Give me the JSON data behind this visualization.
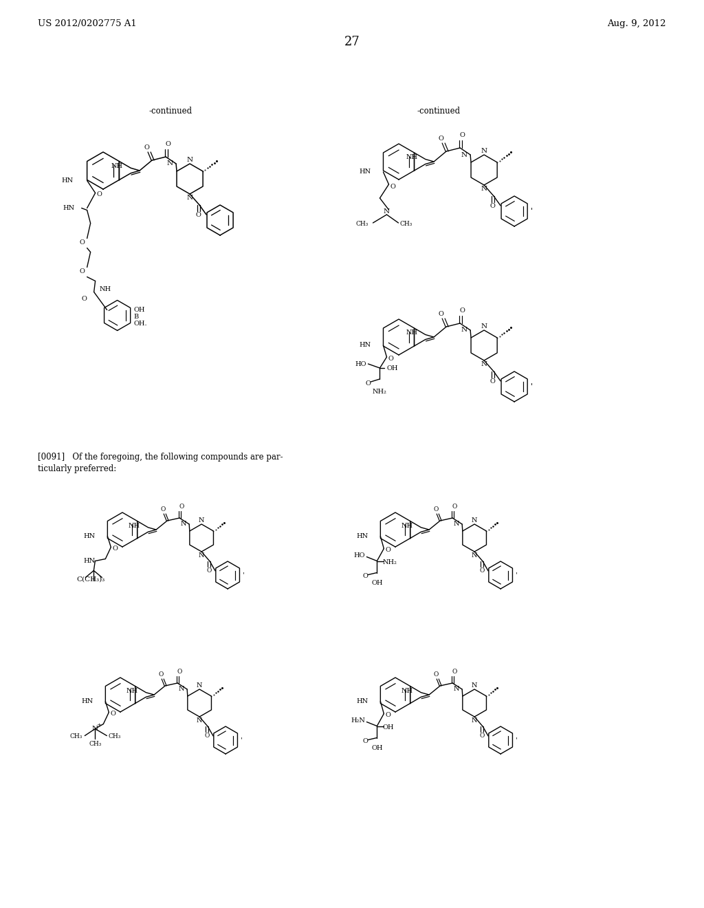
{
  "header_left": "US 2012/0202775 A1",
  "header_right": "Aug. 9, 2012",
  "page_number": "27",
  "bg": "#ffffff"
}
